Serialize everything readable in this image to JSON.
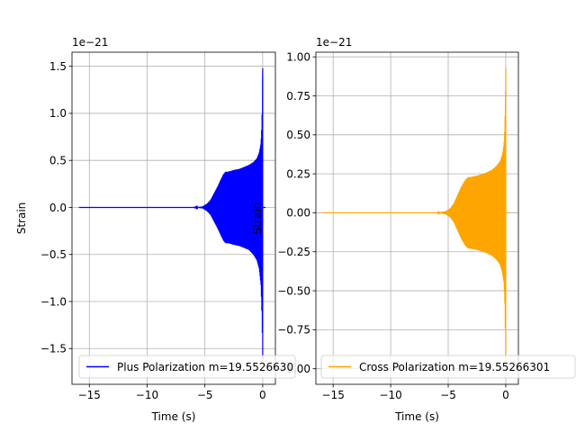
{
  "chart_data": [
    {
      "type": "line",
      "title": "",
      "xlabel": "Time (s)",
      "ylabel": "Strain",
      "offset_text": "1e−21",
      "xlim": [
        -16.5,
        1.1
      ],
      "ylim": [
        -1.88,
        1.65
      ],
      "scale": 1e-21,
      "grid": true,
      "legend_position": "bottom",
      "xticks": [
        -15,
        -10,
        -5,
        0
      ],
      "xtick_labels": [
        "−15",
        "−10",
        "−5",
        "0"
      ],
      "yticks": [
        -1.5,
        -1.0,
        -0.5,
        0.0,
        0.5,
        1.0,
        1.5
      ],
      "ytick_labels": [
        "−1.5",
        "−1.0",
        "−0.5",
        "0.0",
        "0.5",
        "1.0",
        "1.5"
      ],
      "color": "#0000ff",
      "series": [
        {
          "name": "Plus Polarization m=19.5526630...",
          "legend_label": "Plus Polarization m=19.5526630",
          "x": [
            -15.9,
            -8,
            -6,
            -5.2,
            -4.8,
            -4.5,
            -4.2,
            -3.9,
            -3.6,
            -3.4,
            -3.2,
            -3.0,
            -2.7,
            -2.4,
            -2.0,
            -1.6,
            -1.2,
            -0.8,
            -0.5,
            -0.3,
            -0.15,
            -0.08,
            -0.03,
            0.0
          ],
          "envelope": [
            0.0,
            0.0,
            0.0,
            0.01,
            0.04,
            0.08,
            0.15,
            0.22,
            0.3,
            0.35,
            0.38,
            0.38,
            0.39,
            0.4,
            0.41,
            0.43,
            0.45,
            0.48,
            0.52,
            0.58,
            0.68,
            0.85,
            1.1,
            1.48
          ],
          "envelope_low": [
            0.0,
            0.0,
            0.0,
            -0.01,
            -0.04,
            -0.08,
            -0.15,
            -0.22,
            -0.3,
            -0.35,
            -0.38,
            -0.38,
            -0.39,
            -0.4,
            -0.41,
            -0.43,
            -0.45,
            -0.5,
            -0.56,
            -0.65,
            -0.82,
            -1.05,
            -1.35,
            -1.6
          ]
        }
      ]
    },
    {
      "type": "line",
      "title": "",
      "xlabel": "Time (s)",
      "ylabel": "Strain",
      "offset_text": "1e−21",
      "xlim": [
        -16.5,
        1.1
      ],
      "ylim": [
        -1.1,
        1.03
      ],
      "scale": 1e-21,
      "grid": true,
      "legend_position": "bottom",
      "xticks": [
        -15,
        -10,
        -5,
        0
      ],
      "xtick_labels": [
        "−15",
        "−10",
        "−5",
        "0"
      ],
      "yticks": [
        -1.0,
        -0.75,
        -0.5,
        -0.25,
        0.0,
        0.25,
        0.5,
        0.75,
        1.0
      ],
      "ytick_labels": [
        "−1.00",
        "−0.75",
        "−0.50",
        "−0.25",
        "0.00",
        "0.25",
        "0.50",
        "0.75",
        "1.00"
      ],
      "color": "#ffa500",
      "series": [
        {
          "name": "Cross Polarization m=19.5526630...",
          "legend_label": "Cross Polarization m=19.55266301",
          "x": [
            -15.9,
            -8,
            -6,
            -5.2,
            -4.8,
            -4.5,
            -4.2,
            -3.9,
            -3.6,
            -3.4,
            -3.2,
            -3.0,
            -2.7,
            -2.4,
            -2.0,
            -1.6,
            -1.2,
            -0.8,
            -0.5,
            -0.3,
            -0.15,
            -0.08,
            -0.03,
            0.0
          ],
          "envelope": [
            0.0,
            0.0,
            0.0,
            0.01,
            0.03,
            0.06,
            0.11,
            0.16,
            0.2,
            0.22,
            0.23,
            0.23,
            0.235,
            0.24,
            0.25,
            0.26,
            0.275,
            0.3,
            0.33,
            0.37,
            0.44,
            0.55,
            0.72,
            0.93
          ],
          "envelope_low": [
            0.0,
            0.0,
            0.0,
            -0.01,
            -0.03,
            -0.06,
            -0.11,
            -0.16,
            -0.2,
            -0.22,
            -0.23,
            -0.23,
            -0.235,
            -0.24,
            -0.25,
            -0.26,
            -0.275,
            -0.3,
            -0.33,
            -0.38,
            -0.45,
            -0.58,
            -0.78,
            -0.97
          ]
        }
      ]
    }
  ]
}
